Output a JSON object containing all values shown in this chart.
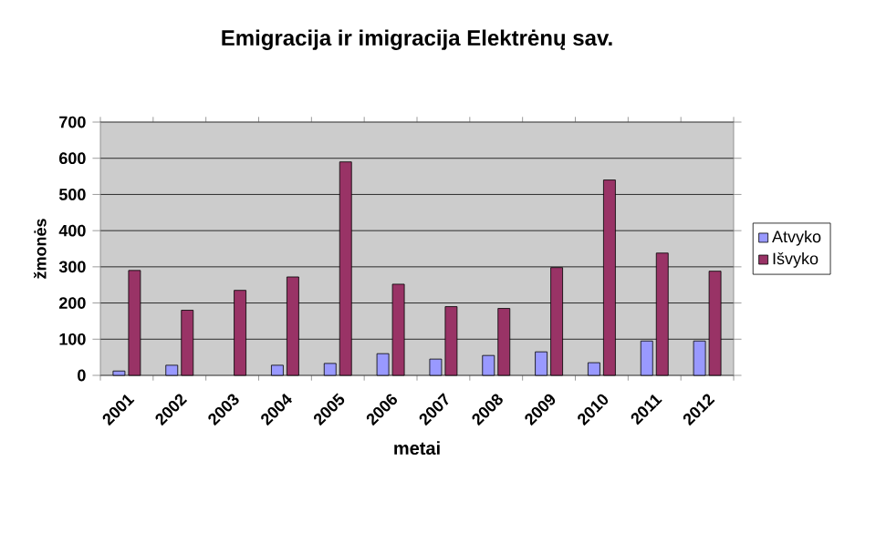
{
  "chart_data": {
    "type": "bar",
    "title": "Emigracija ir imigracija Elektrėnų sav.",
    "xlabel": "metai",
    "ylabel": "žmonės",
    "categories": [
      "2001",
      "2002",
      "2003",
      "2004",
      "2005",
      "2006",
      "2007",
      "2008",
      "2009",
      "2010",
      "2011",
      "2012"
    ],
    "series": [
      {
        "name": "Atvyko",
        "color": "#9999ff",
        "values": [
          12,
          28,
          null,
          28,
          33,
          60,
          45,
          55,
          65,
          35,
          95,
          95
        ]
      },
      {
        "name": "Išvyko",
        "color": "#993366",
        "values": [
          290,
          180,
          235,
          272,
          590,
          252,
          190,
          185,
          298,
          540,
          338,
          288
        ]
      }
    ],
    "ylim": [
      0,
      700
    ],
    "yticks": [
      0,
      100,
      200,
      300,
      400,
      500,
      600,
      700
    ],
    "grid": "y",
    "legend": "right"
  }
}
